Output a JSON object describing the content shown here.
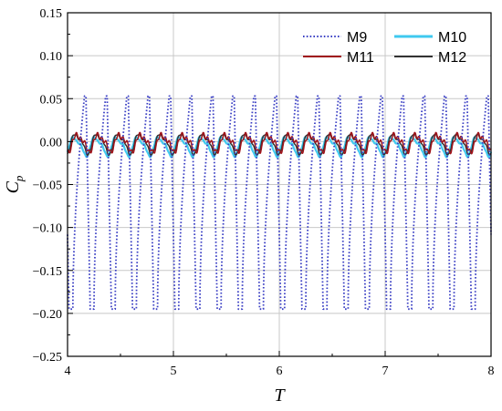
{
  "chart_data": {
    "type": "line",
    "xlabel": "T",
    "ylabel": "C",
    "ylabel_subscript": "p",
    "xlim": [
      4,
      8
    ],
    "ylim": [
      -0.25,
      0.15
    ],
    "x_ticks": [
      "4",
      "5",
      "6",
      "7",
      "8"
    ],
    "y_ticks": [
      "0.15",
      "0.10",
      "0.05",
      "0.00",
      "-0.05",
      "-0.10",
      "-0.15",
      "-0.20",
      "-0.25"
    ],
    "grid": true,
    "legend_position": "top-right",
    "period": 0.2,
    "series": [
      {
        "name": "M9",
        "color": "#3a3fc4",
        "style": "dotted",
        "max": 0.053,
        "min": -0.195
      },
      {
        "name": "M10",
        "color": "#3fc9ef",
        "style": "solid",
        "max": 0.008,
        "min": -0.018
      },
      {
        "name": "M11",
        "color": "#a0141b",
        "style": "solid",
        "max": 0.011,
        "min": -0.013
      },
      {
        "name": "M12",
        "color": "#333333",
        "style": "solid",
        "max": 0.012,
        "min": -0.016
      }
    ]
  }
}
